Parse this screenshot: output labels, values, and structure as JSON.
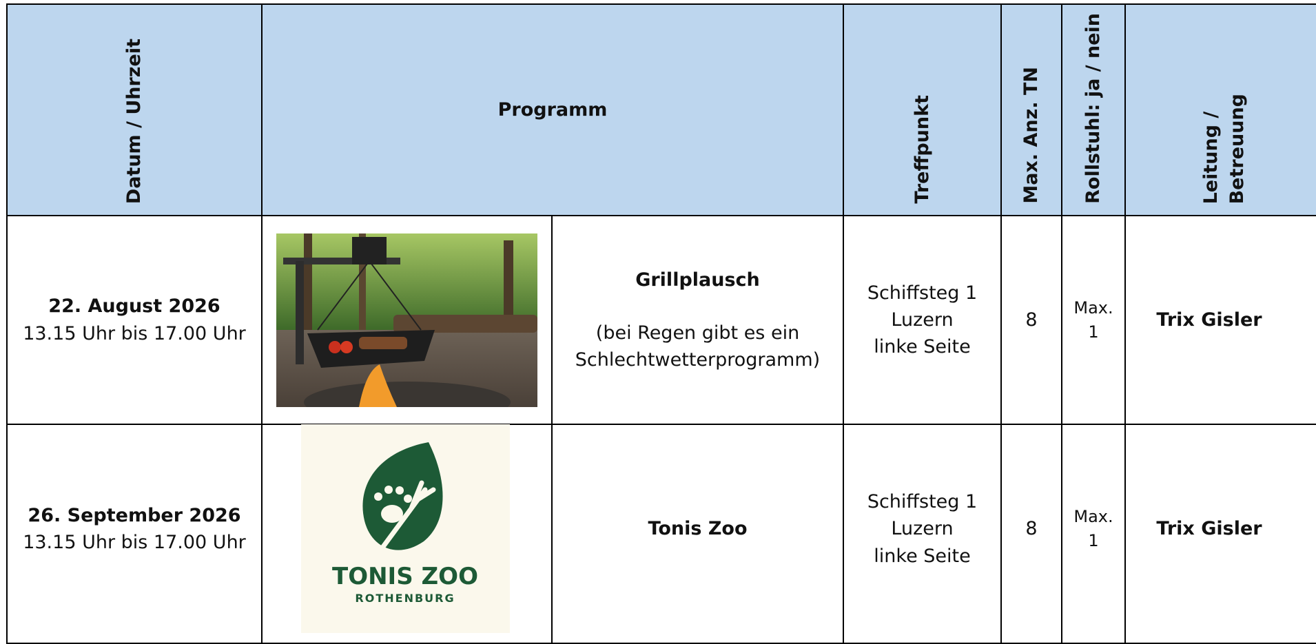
{
  "header": {
    "date_time": "Datum / Uhrzeit",
    "program": "Programm",
    "meeting_point": "Treffpunkt",
    "max_participants": "Max. Anz. TN",
    "wheelchair": "Rollstuhl: ja / nein",
    "lead": [
      "Leitung /",
      "Betreuung"
    ]
  },
  "rows": [
    {
      "date": "22. August 2026",
      "time": "13.15 Uhr bis 17.00 Uhr",
      "title": "Grillplausch",
      "note": [
        "(bei Regen gibt es ein",
        "Schlechtwetterprogramm)"
      ],
      "meeting_point": [
        "Schiffsteg 1",
        "Luzern",
        "linke Seite"
      ],
      "max_participants": "8",
      "wheelchair": [
        "Max.",
        "1"
      ],
      "lead": "Trix Gisler"
    },
    {
      "date": "26. September 2026",
      "time": "13.15 Uhr bis 17.00 Uhr",
      "title": "Tonis Zoo",
      "logo": {
        "name": "TONIS ZOO",
        "place": "ROTHENBURG"
      },
      "meeting_point": [
        "Schiffsteg 1",
        "Luzern",
        "linke Seite"
      ],
      "max_participants": "8",
      "wheelchair": [
        "Max.",
        "1"
      ],
      "lead": "Trix Gisler"
    }
  ]
}
